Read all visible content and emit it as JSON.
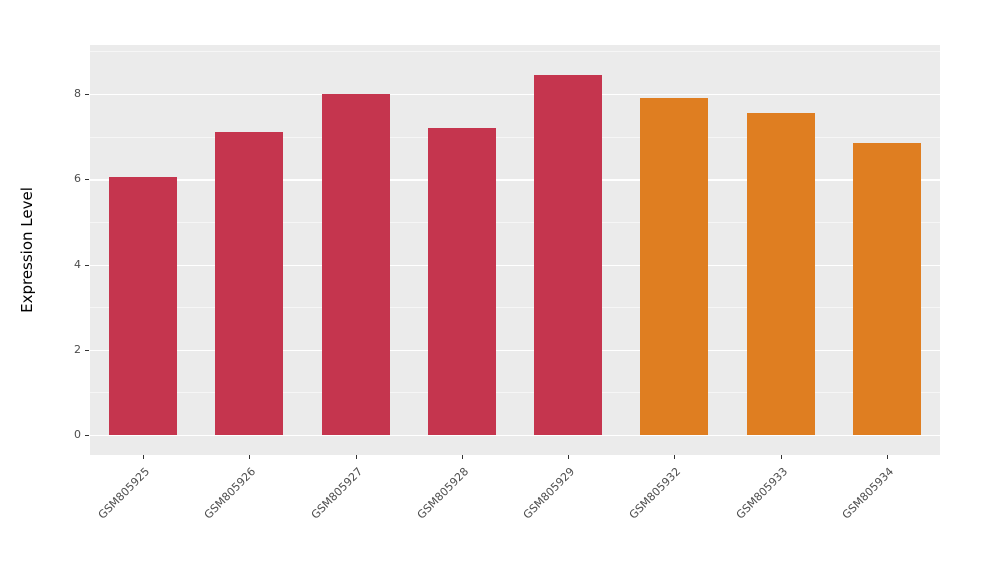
{
  "chart_data": {
    "type": "bar",
    "title": "",
    "xlabel": "",
    "ylabel": "Expression Level",
    "categories": [
      "GSM805925",
      "GSM805926",
      "GSM805927",
      "GSM805928",
      "GSM805929",
      "GSM805932",
      "GSM805933",
      "GSM805934"
    ],
    "values": [
      6.05,
      7.1,
      8.0,
      7.2,
      8.45,
      7.9,
      7.55,
      6.85
    ],
    "bar_colors": [
      "#C5354E",
      "#C5354E",
      "#C5354E",
      "#C5354E",
      "#C5354E",
      "#DF7E21",
      "#DF7E21",
      "#DF7E21"
    ],
    "group_colors": {
      "red_group": "#C5354E",
      "orange_group": "#DF7E21"
    },
    "yticks": [
      0,
      2,
      4,
      6,
      8
    ],
    "minor_yticks": [
      1,
      3,
      5,
      7,
      9
    ],
    "ylim": [
      0,
      9.15
    ],
    "grid": "on",
    "panel_background": "#EBEBEB",
    "gridline_color": "#FFFFFF",
    "legend": "none"
  }
}
